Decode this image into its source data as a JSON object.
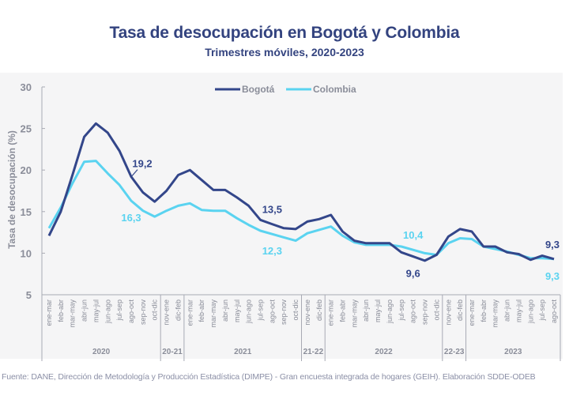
{
  "header": {
    "title": "Tasa de desocupación en Bogotá y Colombia",
    "subtitle": "Trimestres móviles, 2020-2023"
  },
  "footer": {
    "source": "Fuente: DANE, Dirección de Metodología y Producción Estadística (DIMPE) - Gran encuesta integrada de hogares (GEIH). Elaboración SDDE-ODEB"
  },
  "colors": {
    "bogota": "#33468a",
    "colombia": "#5ad3f0",
    "axis": "#a8aab4",
    "text": "#8a8d99"
  },
  "chart_data": {
    "type": "line",
    "title": "Tasa de desocupación en Bogotá y Colombia",
    "subtitle": "Trimestres móviles, 2020-2023",
    "xlabel": "",
    "ylabel": "Tasa de desocupación (%)",
    "ylim": [
      5,
      30
    ],
    "yticks": [
      5,
      10,
      15,
      20,
      25,
      30
    ],
    "grid": false,
    "legend": "top-center",
    "categories": [
      "ene-mar",
      "feb-abr",
      "mar-may",
      "abr-jun",
      "may-jul",
      "jun-ago",
      "jul-sep",
      "ago-oct",
      "sep-nov",
      "oct-dic",
      "nov-ene",
      "dic-feb",
      "ene-mar",
      "feb-abr",
      "mar-may",
      "abr-jun",
      "may-jul",
      "jun-ago",
      "jul-sep",
      "ago-oct",
      "sep-nov",
      "oct-dic",
      "nov-ene",
      "dic-feb",
      "ene-mar",
      "feb-abr",
      "mar-may",
      "abr-jun",
      "may-jul",
      "jun-ago",
      "jul-sep",
      "ago-oct",
      "sep-nov",
      "oct-dic",
      "nov-ene",
      "dic-feb",
      "ene-mar",
      "feb-abr",
      "mar-may",
      "abr-jun",
      "may-jul",
      "jun-ago",
      "jul-sep",
      "ago-oct"
    ],
    "groups": [
      {
        "label": "2020",
        "count": 10
      },
      {
        "label": "20-21",
        "count": 2
      },
      {
        "label": "2021",
        "count": 10
      },
      {
        "label": "21-22",
        "count": 2
      },
      {
        "label": "2022",
        "count": 10
      },
      {
        "label": "22-23",
        "count": 2
      },
      {
        "label": "2023",
        "count": 8
      }
    ],
    "series": [
      {
        "name": "Bogotá",
        "values": [
          12.1,
          15.0,
          19.4,
          24.0,
          25.6,
          24.5,
          22.3,
          19.2,
          17.3,
          16.2,
          17.5,
          19.4,
          20.0,
          18.8,
          17.6,
          17.6,
          16.7,
          15.7,
          14.0,
          13.5,
          13.0,
          12.9,
          13.8,
          14.1,
          14.6,
          12.6,
          11.5,
          11.2,
          11.2,
          11.2,
          10.1,
          9.6,
          9.1,
          9.8,
          12.0,
          12.9,
          12.6,
          10.8,
          10.8,
          10.1,
          9.9,
          9.2,
          9.7,
          9.3
        ]
      },
      {
        "name": "Colombia",
        "values": [
          13.0,
          15.5,
          18.4,
          21.0,
          21.1,
          19.6,
          18.2,
          16.3,
          15.1,
          14.4,
          15.1,
          15.7,
          16.0,
          15.2,
          15.1,
          15.1,
          14.2,
          13.4,
          12.7,
          12.3,
          11.9,
          11.5,
          12.4,
          12.8,
          13.2,
          12.1,
          11.3,
          11.0,
          11.0,
          11.0,
          10.8,
          10.4,
          10.0,
          9.8,
          11.2,
          11.8,
          11.7,
          10.8,
          10.5,
          10.2,
          9.8,
          9.4,
          9.4,
          9.3
        ]
      }
    ],
    "annotations": [
      {
        "series": "Bogotá",
        "index": 7,
        "text": "19,2",
        "position": "above-right"
      },
      {
        "series": "Colombia",
        "index": 7,
        "text": "16,3",
        "position": "below"
      },
      {
        "series": "Bogotá",
        "index": 19,
        "text": "13,5",
        "position": "above"
      },
      {
        "series": "Colombia",
        "index": 19,
        "text": "12,3",
        "position": "below"
      },
      {
        "series": "Colombia",
        "index": 31,
        "text": "10,4",
        "position": "above"
      },
      {
        "series": "Bogotá",
        "index": 31,
        "text": "9,6",
        "position": "below"
      },
      {
        "series": "Bogotá",
        "index": 43,
        "text": "9,3",
        "position": "above"
      },
      {
        "series": "Colombia",
        "index": 43,
        "text": "9,3",
        "position": "below"
      }
    ]
  }
}
